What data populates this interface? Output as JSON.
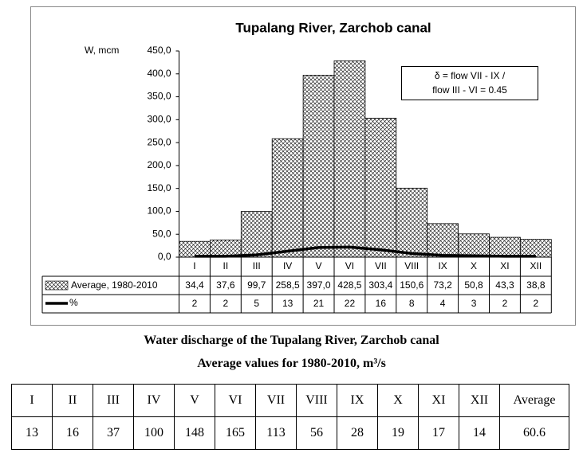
{
  "chart_data": {
    "type": "bar",
    "title": "Tupalang River, Zarchob canal",
    "y_label": "W, mcm",
    "annotation": [
      "δ = flow VII - IX /",
      "flow III - VI = 0.45"
    ],
    "categories": [
      "I",
      "II",
      "III",
      "IV",
      "V",
      "VI",
      "VII",
      "VIII",
      "IX",
      "X",
      "XI",
      "XII"
    ],
    "series": [
      {
        "name": "Average, 1980-2010",
        "type": "bar",
        "color": "#000000",
        "values": [
          34.4,
          37.6,
          99.7,
          258.5,
          397.0,
          428.5,
          303.4,
          150.6,
          73.2,
          50.8,
          43.3,
          38.8
        ],
        "value_labels": [
          "34,4",
          "37,6",
          "99,7",
          "258,5",
          "397,0",
          "428,5",
          "303,4",
          "150,6",
          "73,2",
          "50,8",
          "43,3",
          "38,8"
        ]
      },
      {
        "name": "%",
        "type": "line",
        "color": "#000000",
        "values": [
          2,
          2,
          5,
          13,
          21,
          22,
          16,
          8,
          4,
          3,
          2,
          2
        ]
      }
    ],
    "ylim": [
      0,
      450
    ],
    "yticks": [
      {
        "value": 0,
        "label": "0,0"
      },
      {
        "value": 50,
        "label": "50,0"
      },
      {
        "value": 100,
        "label": "100,0"
      },
      {
        "value": 150,
        "label": "150,0"
      },
      {
        "value": 200,
        "label": "200,0"
      },
      {
        "value": 250,
        "label": "250,0"
      },
      {
        "value": 300,
        "label": "300,0"
      },
      {
        "value": 350,
        "label": "350,0"
      },
      {
        "value": 400,
        "label": "400,0"
      },
      {
        "value": 450,
        "label": "450,0"
      }
    ]
  },
  "caption": [
    "Water discharge of the Tupalang River, Zarchob canal",
    "Average values for 1980-2010, m³/s"
  ],
  "table": {
    "header": [
      "I",
      "II",
      "III",
      "IV",
      "V",
      "VI",
      "VII",
      "VIII",
      "IX",
      "X",
      "XI",
      "XII",
      "Average"
    ],
    "rows": [
      [
        13,
        16,
        37,
        100,
        148,
        165,
        113,
        56,
        28,
        19,
        17,
        14,
        60.6
      ]
    ]
  }
}
